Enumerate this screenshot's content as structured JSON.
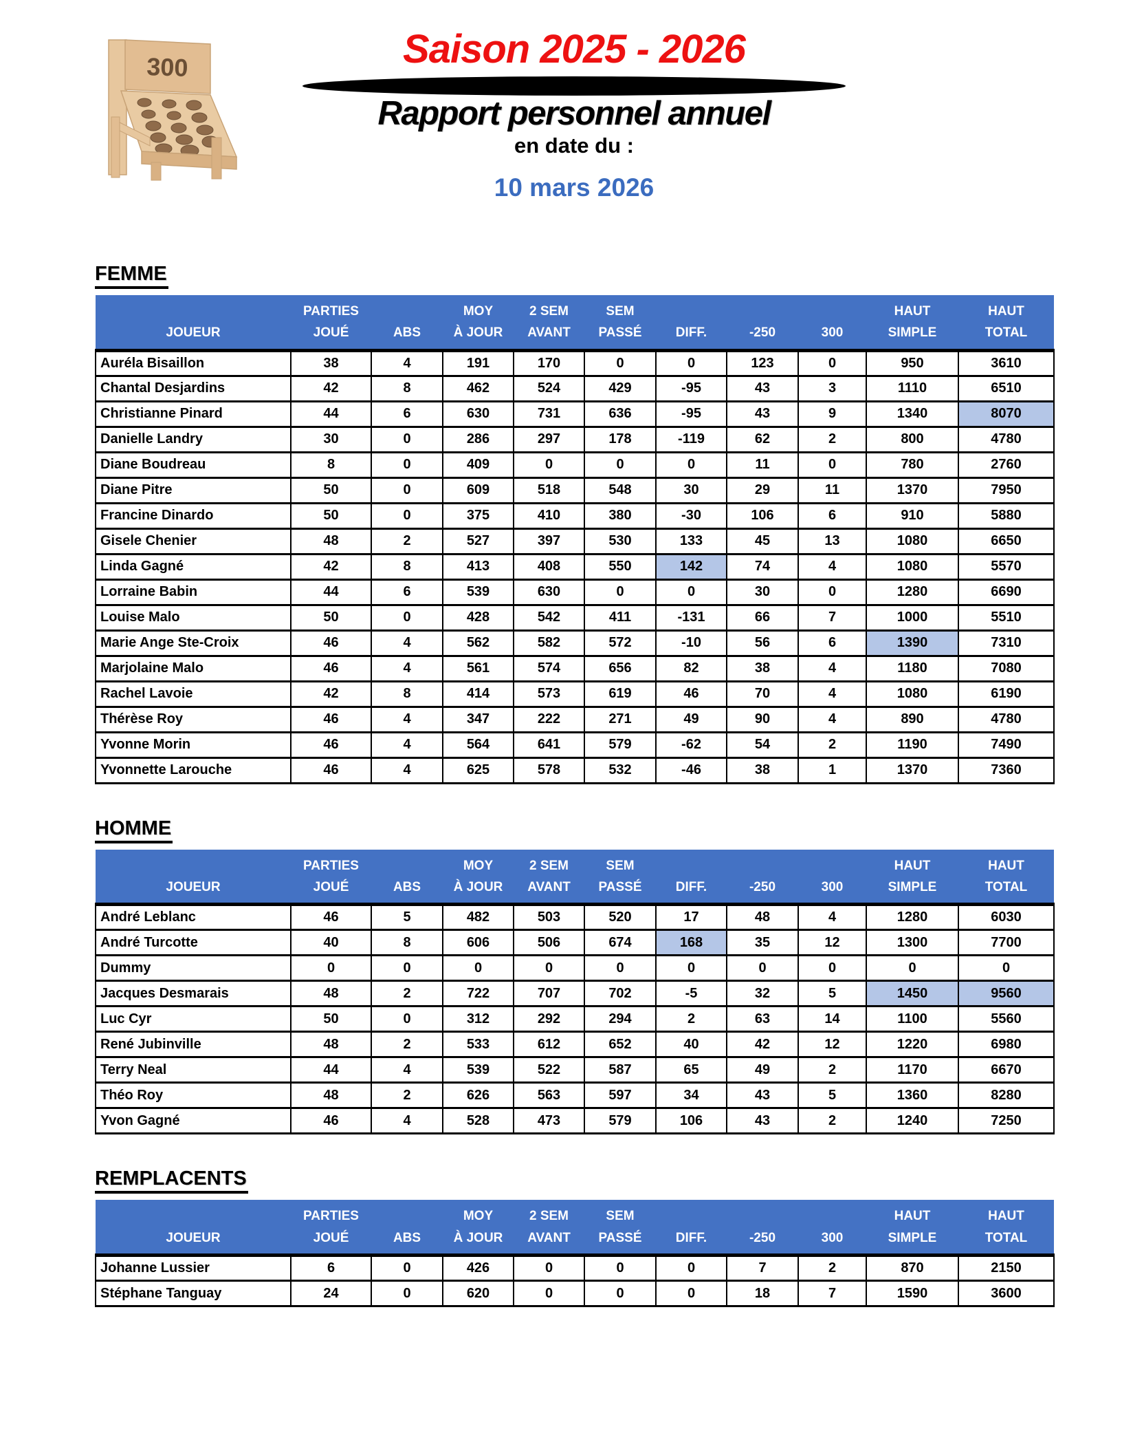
{
  "header": {
    "season_title": "Saison 2025 - 2026",
    "report_title": "Rapport personnel annuel",
    "date_label": "en date du :",
    "date_value": "10 mars 2026",
    "logo": {
      "name": "wooden-game-board-logo",
      "sign_text": "300"
    }
  },
  "colors": {
    "table_header_bg": "#4472C4",
    "highlight_cell": "#B4C6E7",
    "season_title_red": "#ED1111",
    "date_blue": "#3B6CBF"
  },
  "columns": [
    {
      "l1": "",
      "l2": "JOUEUR"
    },
    {
      "l1": "PARTIES",
      "l2": "JOUÉ"
    },
    {
      "l1": "",
      "l2": "ABS"
    },
    {
      "l1": "MOY",
      "l2": "À JOUR"
    },
    {
      "l1": "2 SEM",
      "l2": "AVANT"
    },
    {
      "l1": "SEM",
      "l2": "PASSÉ"
    },
    {
      "l1": "",
      "l2": "DIFF."
    },
    {
      "l1": "",
      "l2": "-250"
    },
    {
      "l1": "",
      "l2": "300"
    },
    {
      "l1": "HAUT",
      "l2": "SIMPLE"
    },
    {
      "l1": "HAUT",
      "l2": "TOTAL"
    }
  ],
  "sections": [
    {
      "title": "FEMME",
      "rows": [
        {
          "name": "Auréla Bisaillon",
          "values": [
            "38",
            "4",
            "191",
            "170",
            "0",
            "0",
            "123",
            "0",
            "950",
            "3610"
          ],
          "highlights": []
        },
        {
          "name": "Chantal Desjardins",
          "values": [
            "42",
            "8",
            "462",
            "524",
            "429",
            "-95",
            "43",
            "3",
            "1110",
            "6510"
          ],
          "highlights": []
        },
        {
          "name": "Christianne Pinard",
          "values": [
            "44",
            "6",
            "630",
            "731",
            "636",
            "-95",
            "43",
            "9",
            "1340",
            "8070"
          ],
          "highlights": [
            9
          ]
        },
        {
          "name": "Danielle Landry",
          "values": [
            "30",
            "0",
            "286",
            "297",
            "178",
            "-119",
            "62",
            "2",
            "800",
            "4780"
          ],
          "highlights": []
        },
        {
          "name": "Diane Boudreau",
          "values": [
            "8",
            "0",
            "409",
            "0",
            "0",
            "0",
            "11",
            "0",
            "780",
            "2760"
          ],
          "highlights": []
        },
        {
          "name": "Diane Pitre",
          "values": [
            "50",
            "0",
            "609",
            "518",
            "548",
            "30",
            "29",
            "11",
            "1370",
            "7950"
          ],
          "highlights": []
        },
        {
          "name": "Francine Dinardo",
          "values": [
            "50",
            "0",
            "375",
            "410",
            "380",
            "-30",
            "106",
            "6",
            "910",
            "5880"
          ],
          "highlights": []
        },
        {
          "name": "Gisele Chenier",
          "values": [
            "48",
            "2",
            "527",
            "397",
            "530",
            "133",
            "45",
            "13",
            "1080",
            "6650"
          ],
          "highlights": []
        },
        {
          "name": "Linda Gagné",
          "values": [
            "42",
            "8",
            "413",
            "408",
            "550",
            "142",
            "74",
            "4",
            "1080",
            "5570"
          ],
          "highlights": [
            5
          ]
        },
        {
          "name": "Lorraine Babin",
          "values": [
            "44",
            "6",
            "539",
            "630",
            "0",
            "0",
            "30",
            "0",
            "1280",
            "6690"
          ],
          "highlights": []
        },
        {
          "name": "Louise Malo",
          "values": [
            "50",
            "0",
            "428",
            "542",
            "411",
            "-131",
            "66",
            "7",
            "1000",
            "5510"
          ],
          "highlights": []
        },
        {
          "name": "Marie Ange Ste-Croix",
          "values": [
            "46",
            "4",
            "562",
            "582",
            "572",
            "-10",
            "56",
            "6",
            "1390",
            "7310"
          ],
          "highlights": [
            8
          ]
        },
        {
          "name": "Marjolaine Malo",
          "values": [
            "46",
            "4",
            "561",
            "574",
            "656",
            "82",
            "38",
            "4",
            "1180",
            "7080"
          ],
          "highlights": []
        },
        {
          "name": "Rachel Lavoie",
          "values": [
            "42",
            "8",
            "414",
            "573",
            "619",
            "46",
            "70",
            "4",
            "1080",
            "6190"
          ],
          "highlights": []
        },
        {
          "name": "Thérèse Roy",
          "values": [
            "46",
            "4",
            "347",
            "222",
            "271",
            "49",
            "90",
            "4",
            "890",
            "4780"
          ],
          "highlights": []
        },
        {
          "name": "Yvonne Morin",
          "values": [
            "46",
            "4",
            "564",
            "641",
            "579",
            "-62",
            "54",
            "2",
            "1190",
            "7490"
          ],
          "highlights": []
        },
        {
          "name": "Yvonnette Larouche",
          "values": [
            "46",
            "4",
            "625",
            "578",
            "532",
            "-46",
            "38",
            "1",
            "1370",
            "7360"
          ],
          "highlights": []
        }
      ]
    },
    {
      "title": "HOMME",
      "rows": [
        {
          "name": "André Leblanc",
          "values": [
            "46",
            "5",
            "482",
            "503",
            "520",
            "17",
            "48",
            "4",
            "1280",
            "6030"
          ],
          "highlights": []
        },
        {
          "name": "André Turcotte",
          "values": [
            "40",
            "8",
            "606",
            "506",
            "674",
            "168",
            "35",
            "12",
            "1300",
            "7700"
          ],
          "highlights": [
            5
          ]
        },
        {
          "name": "Dummy",
          "values": [
            "0",
            "0",
            "0",
            "0",
            "0",
            "0",
            "0",
            "0",
            "0",
            "0"
          ],
          "highlights": []
        },
        {
          "name": "Jacques Desmarais",
          "values": [
            "48",
            "2",
            "722",
            "707",
            "702",
            "-5",
            "32",
            "5",
            "1450",
            "9560"
          ],
          "highlights": [
            8,
            9
          ]
        },
        {
          "name": "Luc Cyr",
          "values": [
            "50",
            "0",
            "312",
            "292",
            "294",
            "2",
            "63",
            "14",
            "1100",
            "5560"
          ],
          "highlights": []
        },
        {
          "name": "René Jubinville",
          "values": [
            "48",
            "2",
            "533",
            "612",
            "652",
            "40",
            "42",
            "12",
            "1220",
            "6980"
          ],
          "highlights": []
        },
        {
          "name": "Terry Neal",
          "values": [
            "44",
            "4",
            "539",
            "522",
            "587",
            "65",
            "49",
            "2",
            "1170",
            "6670"
          ],
          "highlights": []
        },
        {
          "name": "Théo Roy",
          "values": [
            "48",
            "2",
            "626",
            "563",
            "597",
            "34",
            "43",
            "5",
            "1360",
            "8280"
          ],
          "highlights": []
        },
        {
          "name": "Yvon Gagné",
          "values": [
            "46",
            "4",
            "528",
            "473",
            "579",
            "106",
            "43",
            "2",
            "1240",
            "7250"
          ],
          "highlights": []
        }
      ]
    },
    {
      "title": "REMPLACENTS",
      "rows": [
        {
          "name": "Johanne Lussier",
          "values": [
            "6",
            "0",
            "426",
            "0",
            "0",
            "0",
            "7",
            "2",
            "870",
            "2150"
          ],
          "highlights": []
        },
        {
          "name": "Stéphane Tanguay",
          "values": [
            "24",
            "0",
            "620",
            "0",
            "0",
            "0",
            "18",
            "7",
            "1590",
            "3600"
          ],
          "highlights": []
        }
      ]
    }
  ]
}
